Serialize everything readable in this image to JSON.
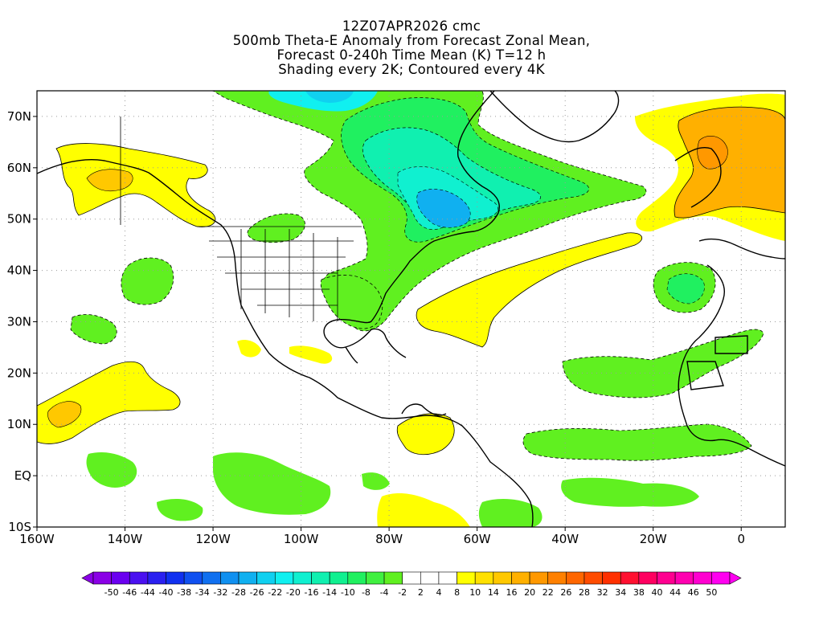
{
  "title": {
    "line1": "12Z07APR2026 cmc",
    "line2": "500mb Theta-E Anomaly from Forecast Zonal Mean,",
    "line3": "Forecast 0-240h Time Mean (K) T=12 h",
    "line4": "Shading every 2K; Contoured every 4K"
  },
  "map": {
    "lon_range": [
      -160,
      10
    ],
    "lat_range": [
      -10,
      75
    ],
    "lat_ticks": [
      {
        "value": 70,
        "label": "70N"
      },
      {
        "value": 60,
        "label": "60N"
      },
      {
        "value": 50,
        "label": "50N"
      },
      {
        "value": 40,
        "label": "40N"
      },
      {
        "value": 30,
        "label": "30N"
      },
      {
        "value": 20,
        "label": "20N"
      },
      {
        "value": 10,
        "label": "10N"
      },
      {
        "value": 0,
        "label": "EQ"
      },
      {
        "value": -10,
        "label": "10S"
      }
    ],
    "lon_ticks": [
      {
        "value": -160,
        "label": "160W"
      },
      {
        "value": -140,
        "label": "140W"
      },
      {
        "value": -120,
        "label": "120W"
      },
      {
        "value": -100,
        "label": "100W"
      },
      {
        "value": -80,
        "label": "80W"
      },
      {
        "value": -60,
        "label": "60W"
      },
      {
        "value": -40,
        "label": "40W"
      },
      {
        "value": -20,
        "label": "20W"
      },
      {
        "value": 0,
        "label": "0"
      }
    ],
    "gridlines": "dotted"
  },
  "colorbar": {
    "labels": [
      "-50",
      "-46",
      "-44",
      "-40",
      "-38",
      "-34",
      "-32",
      "-28",
      "-26",
      "-22",
      "-20",
      "-16",
      "-14",
      "-10",
      "-8",
      "-4",
      "-2",
      "2",
      "4",
      "8",
      "10",
      "14",
      "16",
      "20",
      "22",
      "26",
      "28",
      "32",
      "34",
      "38",
      "40",
      "44",
      "46",
      "50"
    ],
    "colors": [
      "#8a00e6",
      "#6a00f0",
      "#4a10f0",
      "#2a20f0",
      "#1030f0",
      "#1050f0",
      "#1070f0",
      "#1090f0",
      "#10b0f0",
      "#10d0f0",
      "#10f0f0",
      "#10f0d0",
      "#10f0b0",
      "#10f090",
      "#20f060",
      "#40f040",
      "#60f020",
      "#ffffff",
      "#ffffff",
      "#ffffff",
      "#ffff00",
      "#ffe000",
      "#ffc800",
      "#ffb000",
      "#ff9800",
      "#ff8000",
      "#ff6600",
      "#ff4c00",
      "#ff3000",
      "#ff1030",
      "#ff0060",
      "#ff0090",
      "#ff00b0",
      "#ff00d0",
      "#ff00f0"
    ]
  }
}
